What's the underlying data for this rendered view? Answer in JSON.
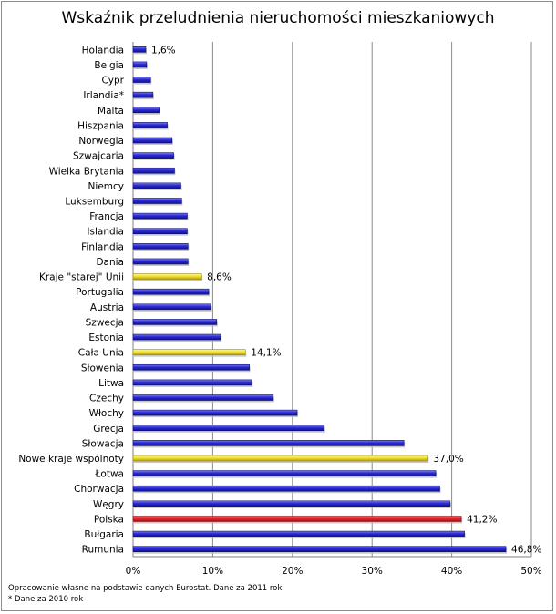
{
  "chart_data": {
    "type": "bar",
    "orientation": "horizontal",
    "title": "Wskaźnik przeludnienia nieruchomości mieszkaniowych",
    "xlabel": "",
    "ylabel": "",
    "xlim": [
      0,
      50
    ],
    "x_ticks": [
      0,
      10,
      20,
      30,
      40,
      50
    ],
    "x_tick_labels": [
      "0%",
      "10%",
      "20%",
      "30%",
      "40%",
      "50%"
    ],
    "grid": "vertical",
    "legend": "none",
    "categories": [
      "Holandia",
      "Belgia",
      "Cypr",
      "Irlandia*",
      "Malta",
      "Hiszpania",
      "Norwegia",
      "Szwajcaria",
      "Wielka Brytania",
      "Niemcy",
      "Luksemburg",
      "Francja",
      "Islandia",
      "Finlandia",
      "Dania",
      "Kraje \"starej\" Unii",
      "Portugalia",
      "Austria",
      "Szwecja",
      "Estonia",
      "Cała Unia",
      "Słowenia",
      "Litwa",
      "Czechy",
      "Włochy",
      "Grecja",
      "Słowacja",
      "Nowe kraje wspólnoty",
      "Łotwa",
      "Chorwacja",
      "Węgry",
      "Polska",
      "Bułgaria",
      "Rumunia"
    ],
    "values": [
      1.6,
      1.7,
      2.2,
      2.5,
      3.3,
      4.3,
      4.9,
      5.1,
      5.2,
      6.0,
      6.1,
      6.8,
      6.8,
      6.9,
      6.9,
      8.6,
      9.5,
      9.8,
      10.5,
      11.0,
      14.1,
      14.6,
      14.9,
      17.6,
      20.6,
      24.0,
      34.0,
      37.0,
      38.0,
      38.5,
      39.8,
      41.2,
      41.6,
      46.8
    ],
    "bar_colors": {
      "default": "#2b2bd6",
      "highlight_yellow": "#f2e22c",
      "highlight_red": "#e8262c"
    },
    "highlight_yellow": [
      "Kraje \"starej\" Unii",
      "Cała Unia",
      "Nowe kraje wspólnoty"
    ],
    "highlight_red": [
      "Polska"
    ],
    "data_labels": [
      {
        "category": "Holandia",
        "text": "1,6%"
      },
      {
        "category": "Kraje \"starej\" Unii",
        "text": "8,6%"
      },
      {
        "category": "Cała Unia",
        "text": "14,1%"
      },
      {
        "category": "Nowe kraje wspólnoty",
        "text": "37,0%"
      },
      {
        "category": "Polska",
        "text": "41,2%"
      },
      {
        "category": "Rumunia",
        "text": "46,8%"
      }
    ]
  },
  "footnotes": {
    "source": "Opracowanie własne na podstawie danych Eurostat. Dane za 2011 rok",
    "note": "* Dane za 2010 rok"
  }
}
